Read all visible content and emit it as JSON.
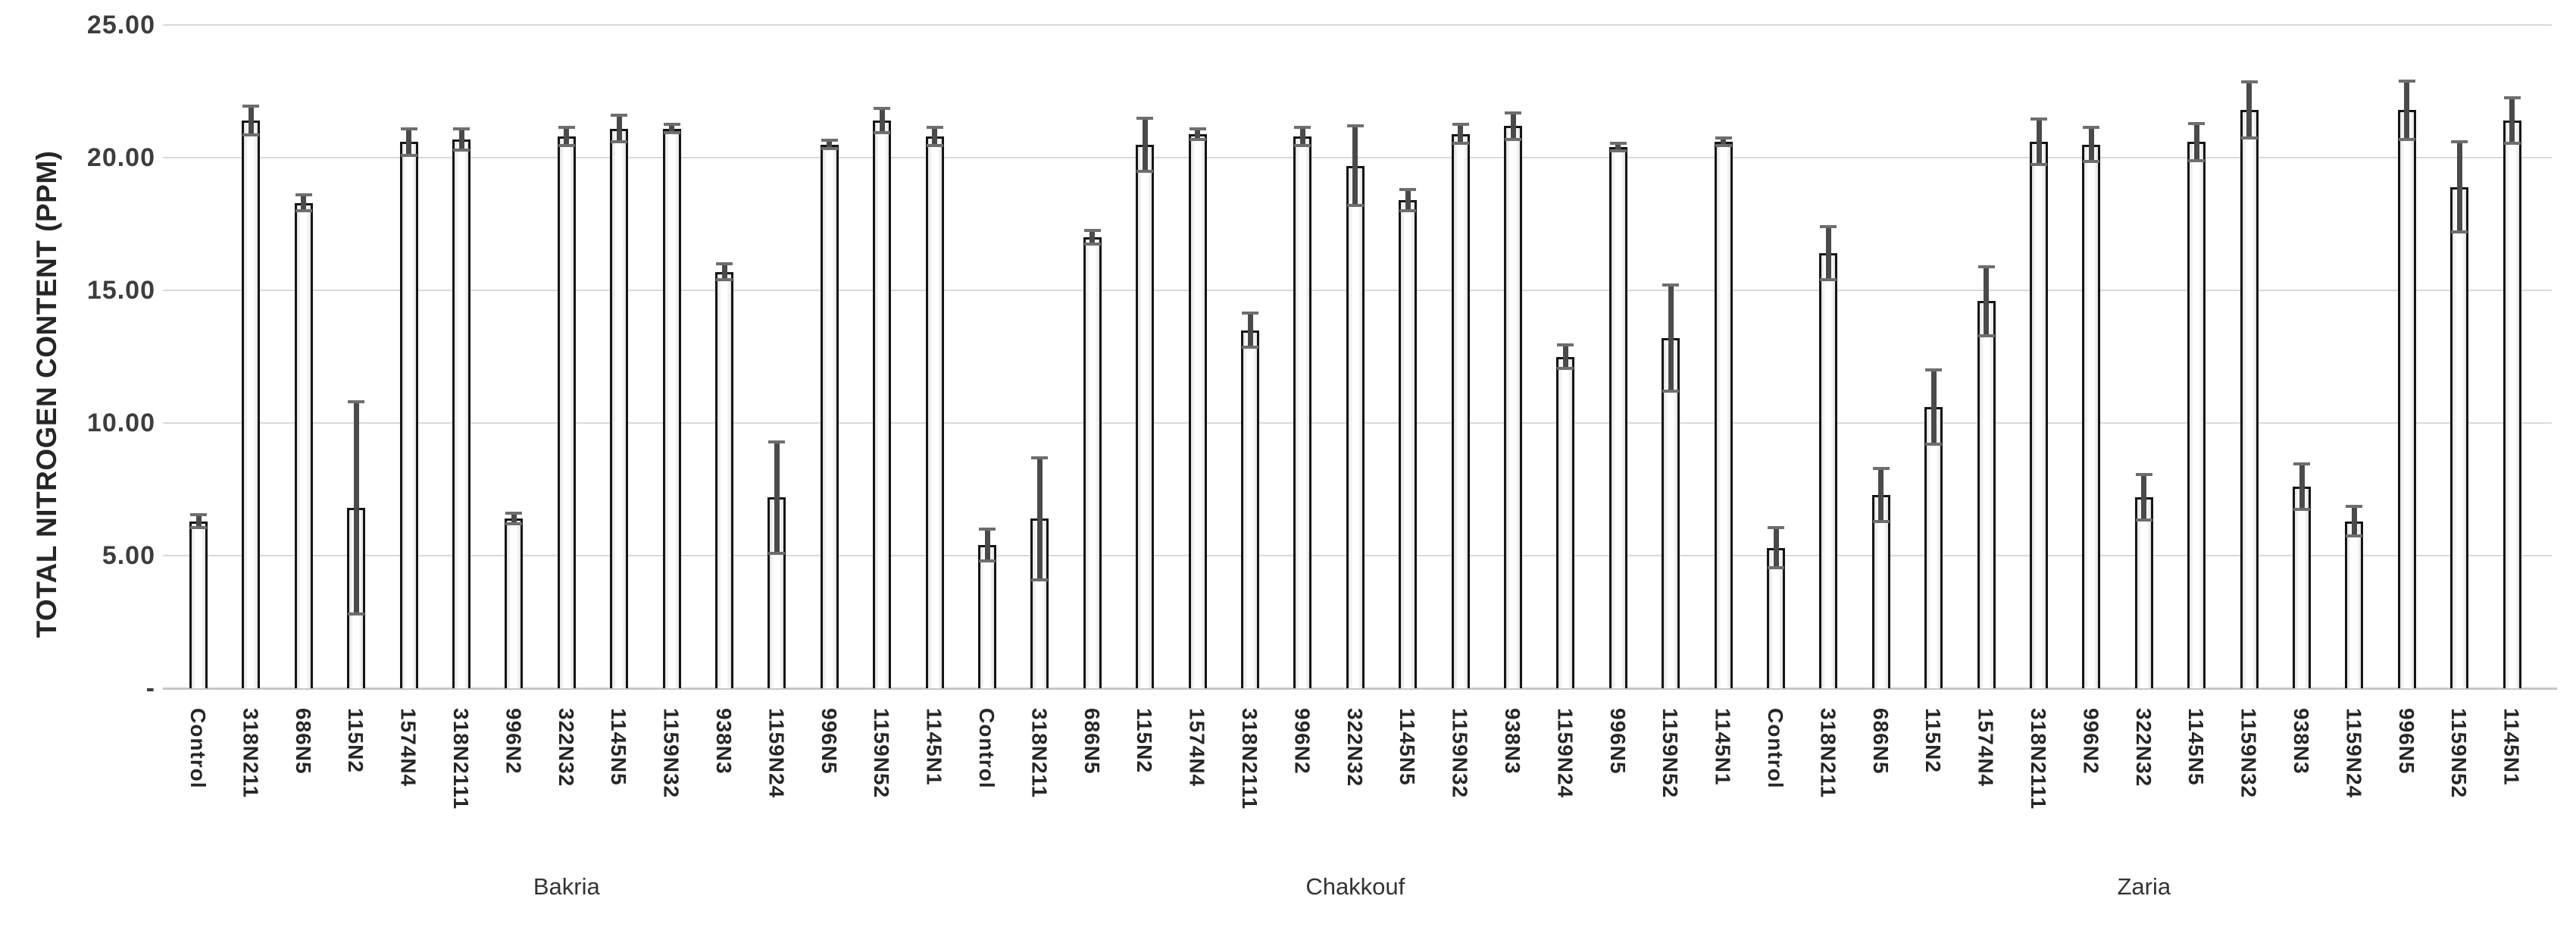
{
  "chart_data": {
    "type": "bar",
    "title": "",
    "ylabel": "TOTAL NITROGEN CONTENT (PPM)",
    "xlabel": "",
    "ylim": [
      0,
      25
    ],
    "ytick_step": 5,
    "grid": true,
    "legend": "none",
    "yticks": [
      {
        "value": 25,
        "label": "25.00"
      },
      {
        "value": 20,
        "label": "20.00"
      },
      {
        "value": 15,
        "label": "15.00"
      },
      {
        "value": 10,
        "label": "10.00"
      },
      {
        "value": 5,
        "label": "5.00"
      },
      {
        "value": 0,
        "label": "-"
      }
    ],
    "error_bars": "symmetric, value plus-minus error, caps both ends",
    "bar_style": {
      "fill": "#ffffff",
      "border": "#151515",
      "error_color": "#4a4a4a",
      "gridline_color": "#d9d9d9",
      "axis_color": "#c6c6c6",
      "text_color": "#262626"
    },
    "groups": [
      {
        "name": "Bakria",
        "bars": [
          {
            "label": "Control",
            "value": 6.3,
            "error": 0.25
          },
          {
            "label": "318N211",
            "value": 21.4,
            "error": 0.55
          },
          {
            "label": "686N5",
            "value": 18.3,
            "error": 0.3
          },
          {
            "label": "115N2",
            "value": 6.8,
            "error": 4.0
          },
          {
            "label": "1574N4",
            "value": 20.6,
            "error": 0.5
          },
          {
            "label": "318N2111",
            "value": 20.7,
            "error": 0.4
          },
          {
            "label": "996N2",
            "value": 6.4,
            "error": 0.2
          },
          {
            "label": "322N32",
            "value": 20.8,
            "error": 0.35
          },
          {
            "label": "1145N5",
            "value": 21.1,
            "error": 0.5
          },
          {
            "label": "1159N32",
            "value": 21.1,
            "error": 0.15
          },
          {
            "label": "938N3",
            "value": 15.7,
            "error": 0.3
          },
          {
            "label": "1159N24",
            "value": 7.2,
            "error": 2.1
          },
          {
            "label": "996N5",
            "value": 20.5,
            "error": 0.15
          },
          {
            "label": "1159N52",
            "value": 21.4,
            "error": 0.45
          },
          {
            "label": "1145N1",
            "value": 20.8,
            "error": 0.35
          }
        ]
      },
      {
        "name": "Chakkouf",
        "bars": [
          {
            "label": "Control",
            "value": 5.4,
            "error": 0.6
          },
          {
            "label": "318N211",
            "value": 6.4,
            "error": 2.3
          },
          {
            "label": "686N5",
            "value": 17.0,
            "error": 0.25
          },
          {
            "label": "115N2",
            "value": 20.5,
            "error": 1.0
          },
          {
            "label": "1574N4",
            "value": 20.9,
            "error": 0.2
          },
          {
            "label": "318N2111",
            "value": 13.5,
            "error": 0.65
          },
          {
            "label": "996N2",
            "value": 20.8,
            "error": 0.35
          },
          {
            "label": "322N32",
            "value": 19.7,
            "error": 1.5
          },
          {
            "label": "1145N5",
            "value": 18.4,
            "error": 0.4
          },
          {
            "label": "1159N32",
            "value": 20.9,
            "error": 0.35
          },
          {
            "label": "938N3",
            "value": 21.2,
            "error": 0.5
          },
          {
            "label": "1159N24",
            "value": 12.5,
            "error": 0.45
          },
          {
            "label": "996N5",
            "value": 20.4,
            "error": 0.15
          },
          {
            "label": "1159N52",
            "value": 13.2,
            "error": 2.0
          },
          {
            "label": "1145N1",
            "value": 20.6,
            "error": 0.15
          }
        ]
      },
      {
        "name": "Zaria",
        "bars": [
          {
            "label": "Control",
            "value": 5.3,
            "error": 0.75
          },
          {
            "label": "318N211",
            "value": 16.4,
            "error": 1.0
          },
          {
            "label": "686N5",
            "value": 7.3,
            "error": 1.0
          },
          {
            "label": "115N2",
            "value": 10.6,
            "error": 1.4
          },
          {
            "label": "1574N4",
            "value": 14.6,
            "error": 1.3
          },
          {
            "label": "318N2111",
            "value": 20.6,
            "error": 0.85
          },
          {
            "label": "996N2",
            "value": 20.5,
            "error": 0.65
          },
          {
            "label": "322N32",
            "value": 7.2,
            "error": 0.85
          },
          {
            "label": "1145N5",
            "value": 20.6,
            "error": 0.7
          },
          {
            "label": "1159N32",
            "value": 21.8,
            "error": 1.05
          },
          {
            "label": "938N3",
            "value": 7.6,
            "error": 0.85
          },
          {
            "label": "1159N24",
            "value": 6.3,
            "error": 0.55
          },
          {
            "label": "996N5",
            "value": 21.8,
            "error": 1.1
          },
          {
            "label": "1159N52",
            "value": 18.9,
            "error": 1.7
          },
          {
            "label": "1145N1",
            "value": 21.4,
            "error": 0.85
          }
        ]
      }
    ]
  }
}
